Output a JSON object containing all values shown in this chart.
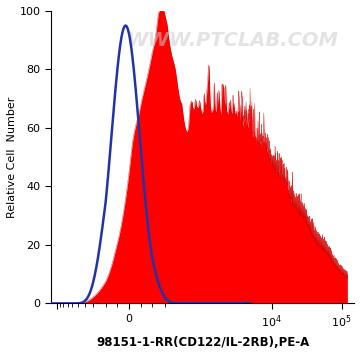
{
  "title": "WWW.PTCLAB.COM",
  "xlabel": "98151-1-RR(CD122/IL-2RB),PE-A",
  "ylabel": "Relative Cell  Number",
  "ylim": [
    0,
    100
  ],
  "background_color": "#ffffff",
  "blue_curve_color": "#2233aa",
  "red_fill_color": "#ff0000",
  "red_edge_color": "#cc0000",
  "watermark_color": "#cccccc",
  "watermark_fontsize": 14
}
